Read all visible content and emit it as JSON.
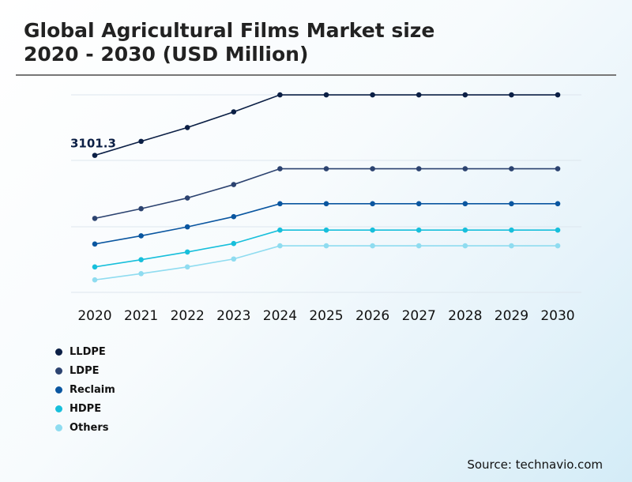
{
  "title": {
    "line1": "Global Agricultural Films Market size",
    "line2": "2020 - 2030 (USD Million)"
  },
  "source": "Source: technavio.com",
  "chart_data": {
    "type": "line",
    "title": "Global Agricultural Films Market size 2020 - 2030 (USD Million)",
    "xlabel": "",
    "ylabel": "",
    "x": [
      2020,
      2021,
      2022,
      2023,
      2024,
      2025,
      2026,
      2027,
      2028,
      2029,
      2030
    ],
    "ylim": [
      0,
      6000
    ],
    "grid": true,
    "legend_position": "bottom-left",
    "annotations": [
      {
        "series": "LLDPE",
        "x": 2020,
        "text": "3101.3"
      }
    ],
    "series": [
      {
        "name": "LLDPE",
        "color": "#0b1f45",
        "values": [
          3101.3,
          3383,
          3660,
          3975,
          4317,
          4317,
          4317,
          4317,
          4317,
          4317,
          4317
        ]
      },
      {
        "name": "LDPE",
        "color": "#2c4370",
        "values": [
          1835,
          2030,
          2245,
          2515,
          2833,
          2833,
          2833,
          2833,
          2833,
          2833,
          2833
        ]
      },
      {
        "name": "Reclaim",
        "color": "#0a56a0",
        "values": [
          1320,
          1485,
          1665,
          1870,
          2130,
          2130,
          2130,
          2130,
          2130,
          2130,
          2130
        ]
      },
      {
        "name": "HDPE",
        "color": "#17bfdb",
        "values": [
          860,
          1005,
          1160,
          1330,
          1600,
          1600,
          1600,
          1600,
          1600,
          1600,
          1600
        ]
      },
      {
        "name": "Others",
        "color": "#8fdcf0",
        "values": [
          600,
          725,
          860,
          1020,
          1285,
          1285,
          1285,
          1285,
          1285,
          1285,
          1285
        ]
      }
    ]
  }
}
